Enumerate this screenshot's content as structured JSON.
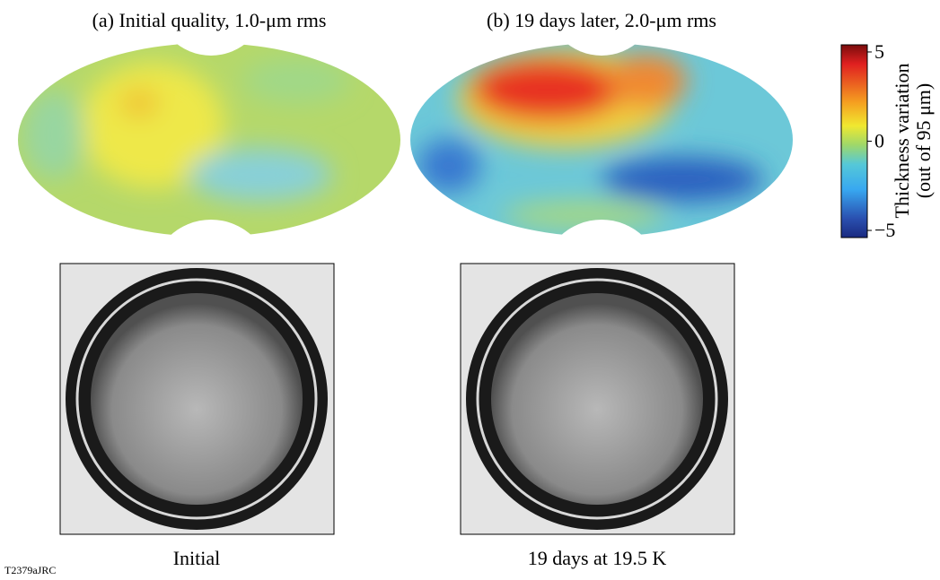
{
  "maps": [
    {
      "title": "(a) Initial quality, 1.0-μm rms"
    },
    {
      "title": "(b) 19 days later, 2.0-μm rms"
    }
  ],
  "colorbar": {
    "label": [
      "Thickness variation",
      "(out of 95 μm)"
    ],
    "lim": [
      -5.4,
      5.4
    ],
    "ticks": [
      5,
      0,
      {
        "value": -5,
        "label": "−5"
      }
    ]
  },
  "photos": [
    {
      "caption": "Initial"
    },
    {
      "caption": "19 days at 19.5 K"
    }
  ],
  "figure_id": "T2379aJRC"
}
